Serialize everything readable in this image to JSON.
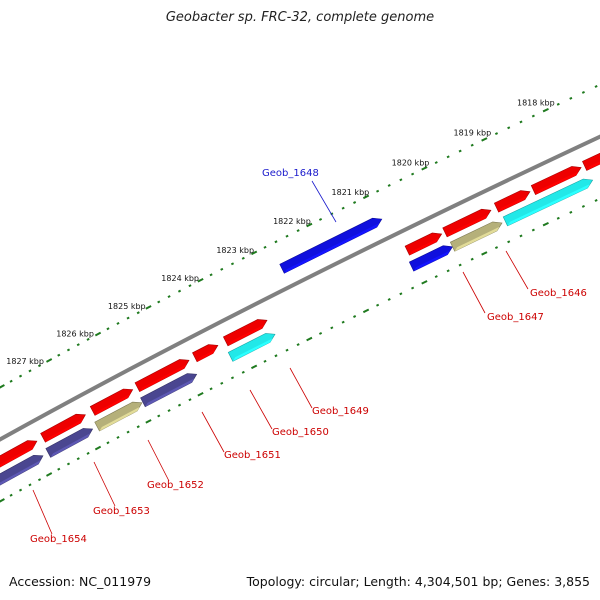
{
  "title": "Geobacter sp. FRC-32, complete genome",
  "footer": {
    "accession": "Accession: NC_011979",
    "summary": "Topology: circular; Length: 4,304,501 bp; Genes: 3,855"
  },
  "colors": {
    "backbone": "#808080",
    "ticks": "#1f7a1f",
    "red": "#ee0000",
    "blue": "#1010dd",
    "cyan": "#22e8e8",
    "navy": "#4a4690",
    "khaki": "#b5b07a",
    "label_red": "#cc0000",
    "label_blue": "#1a1acc"
  },
  "scale_labels": [
    "1818 kbp",
    "1819 kbp",
    "1820 kbp",
    "1821 kbp",
    "1822 kbp",
    "1823 kbp",
    "1824 kbp",
    "1825 kbp",
    "1826 kbp",
    "1827 kbp"
  ],
  "gene_labels": [
    {
      "name": "Geob_1646",
      "color": "label_red"
    },
    {
      "name": "Geob_1647",
      "color": "label_red"
    },
    {
      "name": "Geob_1648",
      "color": "label_blue"
    },
    {
      "name": "Geob_1649",
      "color": "label_red"
    },
    {
      "name": "Geob_1650",
      "color": "label_red"
    },
    {
      "name": "Geob_1651",
      "color": "label_red"
    },
    {
      "name": "Geob_1652",
      "color": "label_red"
    },
    {
      "name": "Geob_1653",
      "color": "label_red"
    },
    {
      "name": "Geob_1654",
      "color": "label_red"
    }
  ]
}
